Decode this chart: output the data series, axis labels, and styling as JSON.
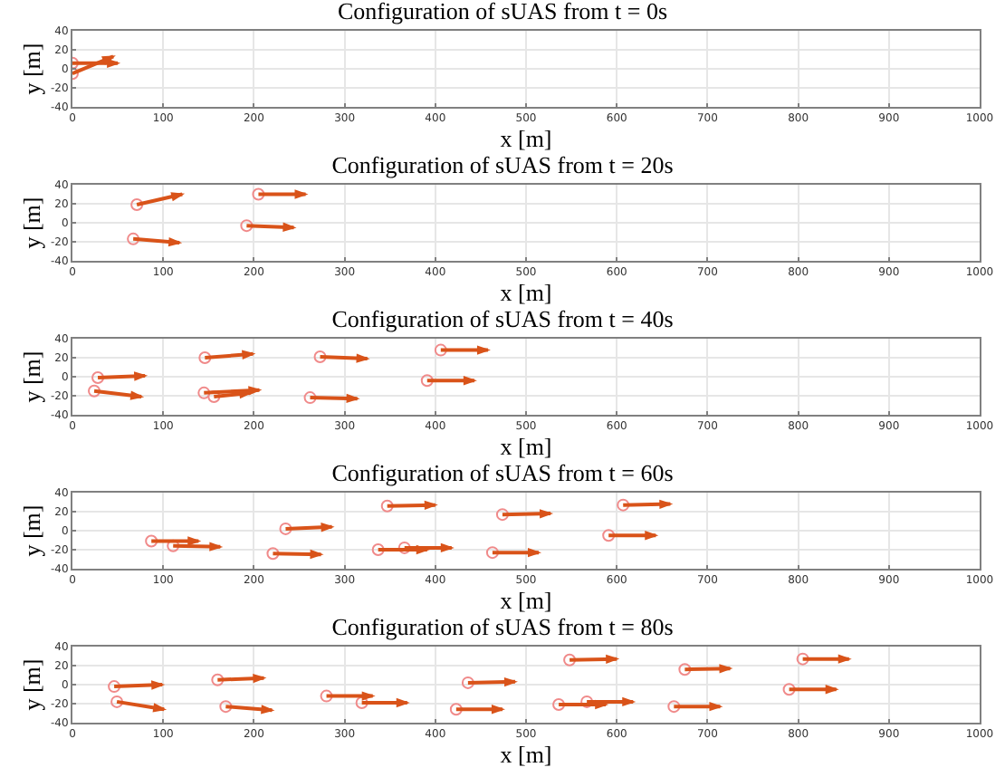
{
  "chart_data": [
    {
      "type": "scatter",
      "title": "Configuration of sUAS from t = 0s",
      "xlabel": "x [m]",
      "ylabel": "y [m]",
      "xlim": [
        0,
        1000
      ],
      "xticks": [
        0,
        100,
        200,
        300,
        400,
        500,
        600,
        700,
        800,
        900,
        1000
      ],
      "ylim": [
        -40,
        40
      ],
      "yticks": [
        -40,
        -20,
        0,
        20,
        40
      ],
      "grid": true,
      "series": [
        {
          "type": "scatter",
          "marker": "circle",
          "color": "#f08a8a",
          "x": [
            0,
            0
          ],
          "values": [
            6,
            -5
          ]
        },
        {
          "type": "line",
          "color": "#d95319",
          "x": [
            0,
            50,
            null,
            0,
            45
          ],
          "values": [
            6,
            6,
            null,
            -5,
            13
          ]
        }
      ]
    },
    {
      "type": "scatter",
      "title": "Configuration of sUAS from t = 20s",
      "xlabel": "x [m]",
      "ylabel": "y [m]",
      "xlim": [
        0,
        1000
      ],
      "xticks": [
        0,
        100,
        200,
        300,
        400,
        500,
        600,
        700,
        800,
        900,
        1000
      ],
      "ylim": [
        -40,
        40
      ],
      "yticks": [
        -40,
        -20,
        0,
        20,
        40
      ],
      "grid": true,
      "series": [
        {
          "type": "scatter",
          "marker": "circle",
          "color": "#f08a8a",
          "x": [
            71,
            205,
            192,
            67
          ],
          "values": [
            19,
            30,
            -3,
            -17
          ]
        },
        {
          "type": "line",
          "color": "#d95319",
          "x": [
            71,
            121,
            null,
            205,
            257,
            null,
            192,
            244,
            null,
            67,
            118
          ],
          "values": [
            19,
            30,
            null,
            30,
            30,
            null,
            -3,
            -5,
            null,
            -17,
            -21
          ]
        }
      ]
    },
    {
      "type": "scatter",
      "title": "Configuration of sUAS from t = 40s",
      "xlabel": "x [m]",
      "ylabel": "y [m]",
      "xlim": [
        0,
        1000
      ],
      "xticks": [
        0,
        100,
        200,
        300,
        400,
        500,
        600,
        700,
        800,
        900,
        1000
      ],
      "ylim": [
        -40,
        40
      ],
      "yticks": [
        -40,
        -20,
        0,
        20,
        40
      ],
      "grid": true,
      "series": [
        {
          "type": "scatter",
          "marker": "circle",
          "color": "#f08a8a",
          "x": [
            28,
            24,
            146,
            145,
            156,
            273,
            262,
            391,
            406
          ],
          "values": [
            -1,
            -15,
            20,
            -17,
            -21,
            21,
            -22,
            -4,
            28
          ]
        },
        {
          "type": "line",
          "color": "#d95319",
          "x": [
            28,
            80,
            null,
            24,
            76,
            null,
            146,
            199,
            null,
            145,
            206,
            null,
            156,
            196,
            null,
            273,
            325,
            null,
            262,
            314,
            null,
            391,
            443,
            null,
            406,
            458
          ],
          "values": [
            -1,
            1,
            null,
            -15,
            -21,
            null,
            20,
            24,
            null,
            -17,
            -14,
            null,
            -21,
            -17,
            null,
            21,
            19,
            null,
            -22,
            -23,
            null,
            -4,
            -4,
            null,
            28,
            28
          ]
        }
      ]
    },
    {
      "type": "scatter",
      "title": "Configuration of sUAS from t = 60s",
      "xlabel": "x [m]",
      "ylabel": "y [m]",
      "xlim": [
        0,
        1000
      ],
      "xticks": [
        0,
        100,
        200,
        300,
        400,
        500,
        600,
        700,
        800,
        900,
        1000
      ],
      "ylim": [
        -40,
        40
      ],
      "yticks": [
        -40,
        -20,
        0,
        20,
        40
      ],
      "grid": true,
      "series": [
        {
          "type": "scatter",
          "marker": "circle",
          "color": "#f08a8a",
          "x": [
            87,
            111,
            235,
            221,
            347,
            337,
            366,
            474,
            463,
            591,
            607
          ],
          "values": [
            -11,
            -16,
            2,
            -24,
            26,
            -20,
            -18,
            17,
            -23,
            -5,
            27
          ]
        },
        {
          "type": "line",
          "color": "#d95319",
          "x": [
            87,
            139,
            null,
            111,
            163,
            null,
            235,
            286,
            null,
            221,
            274,
            null,
            347,
            400,
            null,
            337,
            391,
            null,
            366,
            418,
            null,
            474,
            527,
            null,
            463,
            514,
            null,
            591,
            643,
            null,
            607,
            659
          ],
          "values": [
            -11,
            -11,
            null,
            -16,
            -17,
            null,
            2,
            4,
            null,
            -24,
            -25,
            null,
            26,
            27,
            null,
            -20,
            -20,
            null,
            -18,
            -18,
            null,
            17,
            18,
            null,
            -23,
            -23,
            null,
            -5,
            -5,
            null,
            27,
            28
          ]
        }
      ]
    },
    {
      "type": "scatter",
      "title": "Configuration of sUAS from t = 80s",
      "xlabel": "x [m]",
      "ylabel": "y [m]",
      "xlim": [
        0,
        1000
      ],
      "xticks": [
        0,
        100,
        200,
        300,
        400,
        500,
        600,
        700,
        800,
        900,
        1000
      ],
      "ylim": [
        -40,
        40
      ],
      "yticks": [
        -40,
        -20,
        0,
        20,
        40
      ],
      "grid": true,
      "series": [
        {
          "type": "scatter",
          "marker": "circle",
          "color": "#f08a8a",
          "x": [
            46,
            49,
            160,
            169,
            280,
            319,
            423,
            436,
            536,
            567,
            548,
            663,
            675,
            790,
            805
          ],
          "values": [
            -2,
            -18,
            5,
            -23,
            -12,
            -19,
            -26,
            2,
            -21,
            -18,
            26,
            -23,
            16,
            -5,
            27
          ]
        },
        {
          "type": "line",
          "color": "#d95319",
          "x": [
            46,
            99,
            null,
            49,
            101,
            null,
            160,
            211,
            null,
            169,
            220,
            null,
            280,
            331,
            null,
            319,
            369,
            null,
            423,
            474,
            null,
            436,
            488,
            null,
            536,
            588,
            null,
            567,
            618,
            null,
            548,
            600,
            null,
            663,
            714,
            null,
            675,
            725,
            null,
            790,
            842,
            null,
            805,
            856
          ],
          "values": [
            -2,
            0,
            null,
            -18,
            -26,
            null,
            5,
            7,
            null,
            -23,
            -27,
            null,
            -12,
            -12,
            null,
            -19,
            -19,
            null,
            -26,
            -26,
            null,
            2,
            3,
            null,
            -21,
            -21,
            null,
            -18,
            -18,
            null,
            26,
            27,
            null,
            -23,
            -23,
            null,
            16,
            17,
            null,
            -5,
            -5,
            null,
            27,
            27
          ]
        }
      ]
    }
  ]
}
